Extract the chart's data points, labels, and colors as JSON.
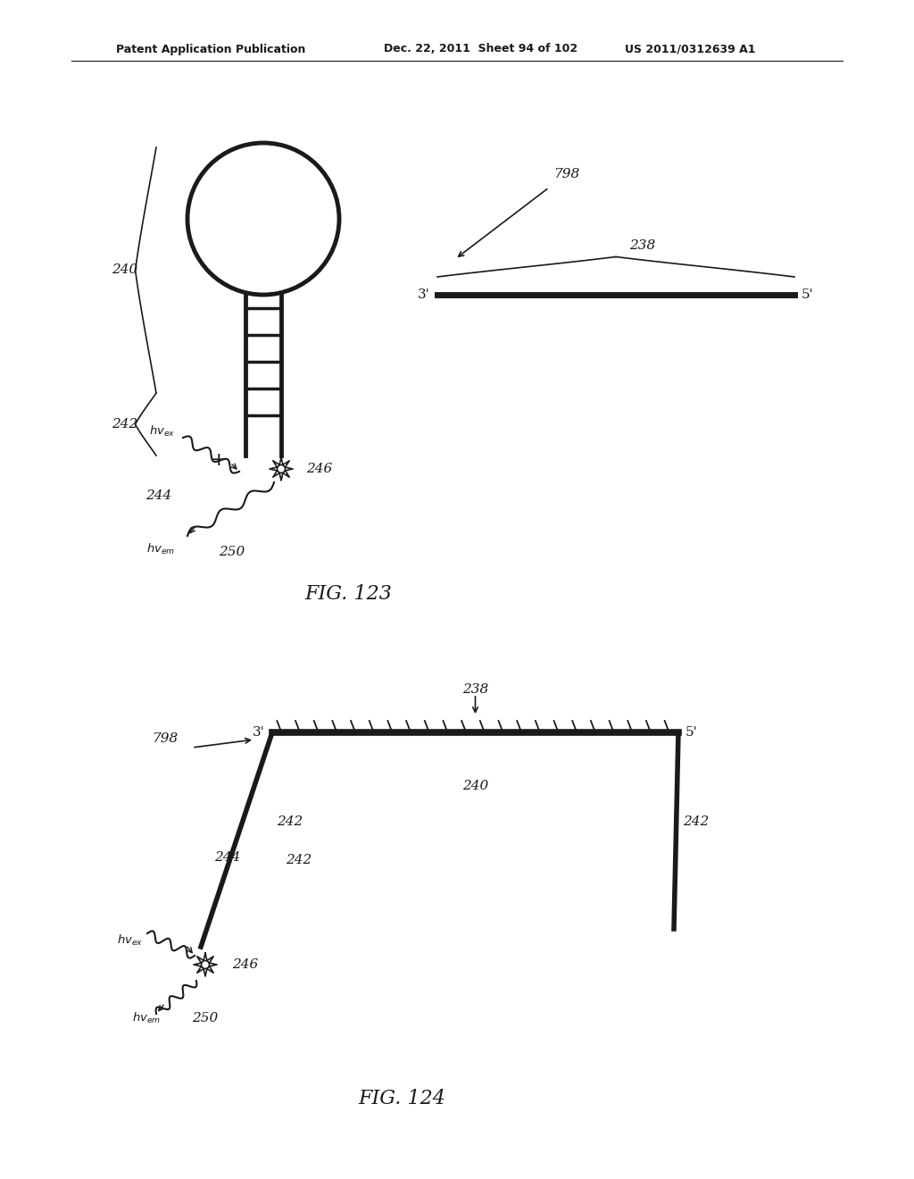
{
  "bg_color": "#ffffff",
  "header_left": "Patent Application Publication",
  "header_mid": "Dec. 22, 2011  Sheet 94 of 102",
  "header_right": "US 2011/0312639 A1",
  "line_color": "#1a1a1a",
  "text_color": "#1a1a1a",
  "fig123_label": "FIG. 123",
  "fig124_label": "FIG. 124"
}
